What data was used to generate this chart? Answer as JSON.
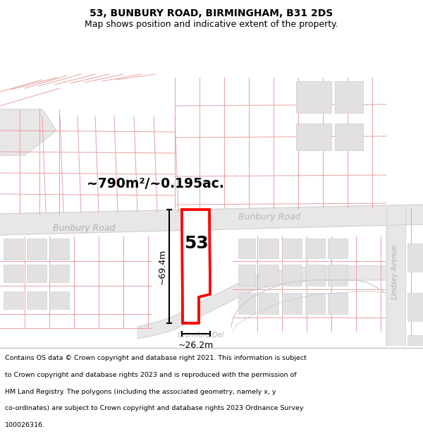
{
  "title_line1": "53, BUNBURY ROAD, BIRMINGHAM, B31 2DS",
  "title_line2": "Map shows position and indicative extent of the property.",
  "footer_lines": [
    "Contains OS data © Crown copyright and database right 2021. This information is subject",
    "to Crown copyright and database rights 2023 and is reproduced with the permission of",
    "HM Land Registry. The polygons (including the associated geometry, namely x, y",
    "co-ordinates) are subject to Crown copyright and database rights 2023 Ordnance Survey",
    "100026316."
  ],
  "map_bg": "#f7f4f4",
  "road_fill": "#e8e6e6",
  "road_edge": "#cccccc",
  "plot_line_color": "#e8a0a0",
  "building_fill": "#e0dede",
  "highlight_color": "#ff0000",
  "area_label": "~790m²/~0.195ac.",
  "width_label": "~26.2m",
  "height_label": "~69.4m",
  "number_label": "53",
  "title_fontsize": 10,
  "subtitle_fontsize": 9,
  "footer_fontsize": 6.8
}
